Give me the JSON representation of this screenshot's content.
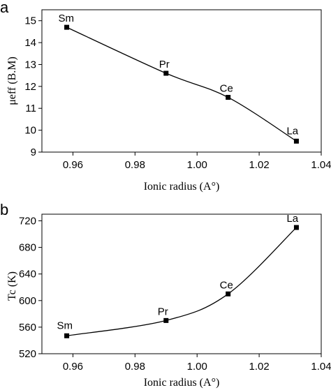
{
  "chart_data": [
    {
      "type": "line",
      "panel_label": "a",
      "x": [
        0.958,
        0.99,
        1.01,
        1.032
      ],
      "y": [
        14.7,
        12.6,
        11.5,
        9.5
      ],
      "point_labels": [
        "Sm",
        "Pr",
        "Ce",
        "La"
      ],
      "xlabel": "Ionic radius  (A°)",
      "ylabel": "μeff  (B.M)",
      "xlim": [
        0.95,
        1.04
      ],
      "ylim": [
        9,
        15.5
      ],
      "xticks": [
        "0.96",
        "0.98",
        "1.00",
        "1.02",
        "1.04"
      ],
      "yticks": [
        "9",
        "10",
        "11",
        "12",
        "13",
        "14",
        "15"
      ],
      "grid": false
    },
    {
      "type": "line",
      "panel_label": "b",
      "x": [
        0.958,
        0.99,
        1.01,
        1.032
      ],
      "y": [
        547,
        570,
        610,
        710
      ],
      "point_labels": [
        "Sm",
        "Pr",
        "Ce",
        "La"
      ],
      "xlabel": "Ionic radius  (A°)",
      "ylabel": "Tc  (K)",
      "xlim": [
        0.95,
        1.04
      ],
      "ylim": [
        520,
        730
      ],
      "xticks": [
        "0.96",
        "0.98",
        "1.00",
        "1.02",
        "1.04"
      ],
      "yticks": [
        "520",
        "560",
        "600",
        "640",
        "680",
        "720"
      ],
      "grid": false
    }
  ]
}
